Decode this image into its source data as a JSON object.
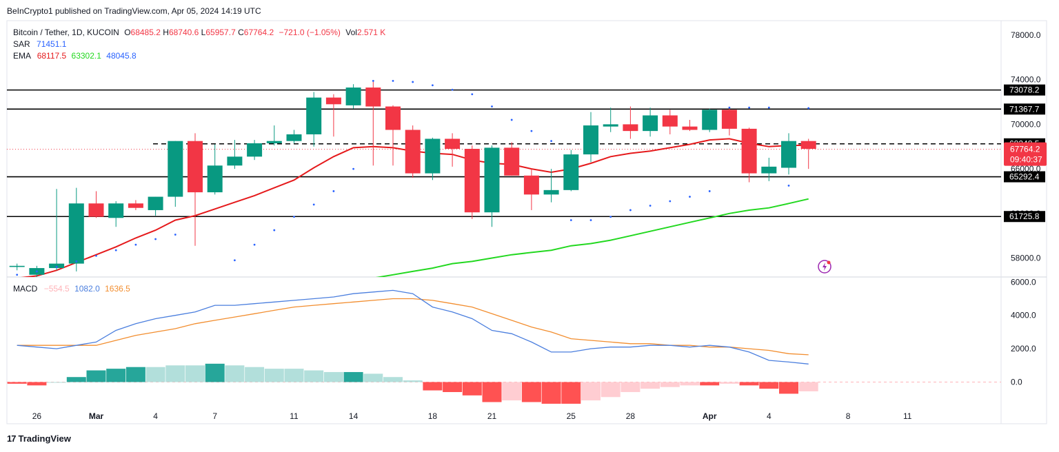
{
  "publisher": "BeInCrypto1 published on TradingView.com, Apr 05, 2024 14:19 UTC",
  "symbol": {
    "name": "Bitcoin / Tether, 1D, KUCOIN",
    "open_label": "O",
    "open": "68485.2",
    "high_label": "H",
    "high": "68740.6",
    "low_label": "L",
    "low": "65957.7",
    "close_label": "C",
    "close": "67764.2",
    "change": "−721.0 (−1.05%)",
    "vol_label": "Vol",
    "vol": "2.571 K"
  },
  "indicators": {
    "sar_label": "SAR",
    "sar_value": "71451.1",
    "ema_label": "EMA",
    "ema_values": [
      "68117.5",
      "63302.1",
      "48045.8"
    ],
    "macd_label": "MACD",
    "macd_values": [
      "−554.5",
      "1082.0",
      "1636.5"
    ]
  },
  "footer": {
    "brand": "TradingView",
    "logo": "17"
  },
  "colors": {
    "up": "#089981",
    "down": "#f23645",
    "ema_fast": "#e5191b",
    "ema_mid": "#22d81f",
    "macd_line": "#4a7ede",
    "signal_line": "#f28d2e",
    "hist_up_strong": "#26a69a",
    "hist_up_weak": "#b2dfdb",
    "hist_down_strong": "#ff5252",
    "hist_down_weak": "#ffcdd2",
    "sar": "#2962ff"
  },
  "chart_data": [
    {
      "type": "candlestick",
      "ylim": [
        56300,
        79300
      ],
      "y_ticks": [
        "78000.0",
        "74000.0",
        "70000.0",
        "66000.0",
        "62000.0",
        "58000.0"
      ],
      "x_ticks": [
        "26",
        "Mar",
        "4",
        "7",
        "11",
        "14",
        "18",
        "21",
        "25",
        "28",
        "Apr",
        "4",
        "8",
        "11"
      ],
      "x_tick_index": [
        2,
        5,
        8,
        11,
        15,
        18,
        22,
        25,
        29,
        32,
        36,
        39,
        43,
        46
      ],
      "candles": [
        {
          "o": 57200,
          "h": 57400,
          "l": 56800,
          "c": 57100
        },
        {
          "o": 57200,
          "h": 57500,
          "l": 56900,
          "c": 57300
        },
        {
          "o": 56500,
          "h": 57300,
          "l": 56200,
          "c": 57100
        },
        {
          "o": 57100,
          "h": 64200,
          "l": 56900,
          "c": 57500
        },
        {
          "o": 57500,
          "h": 64300,
          "l": 56800,
          "c": 62900
        },
        {
          "o": 62900,
          "h": 64000,
          "l": 61600,
          "c": 61700
        },
        {
          "o": 61600,
          "h": 63100,
          "l": 60800,
          "c": 62900
        },
        {
          "o": 62900,
          "h": 63200,
          "l": 62300,
          "c": 62500
        },
        {
          "o": 62300,
          "h": 63500,
          "l": 61800,
          "c": 63500
        },
        {
          "o": 63500,
          "h": 68500,
          "l": 62600,
          "c": 68500
        },
        {
          "o": 68500,
          "h": 69200,
          "l": 59100,
          "c": 63900
        },
        {
          "o": 63900,
          "h": 68200,
          "l": 63700,
          "c": 66300
        },
        {
          "o": 66300,
          "h": 68600,
          "l": 66000,
          "c": 67100
        },
        {
          "o": 67100,
          "h": 68600,
          "l": 66800,
          "c": 68300
        },
        {
          "o": 68300,
          "h": 69900,
          "l": 68100,
          "c": 68500
        },
        {
          "o": 68500,
          "h": 69500,
          "l": 68300,
          "c": 69100
        },
        {
          "o": 69100,
          "h": 72900,
          "l": 68000,
          "c": 72400
        },
        {
          "o": 72400,
          "h": 72700,
          "l": 68900,
          "c": 71800
        },
        {
          "o": 71700,
          "h": 73600,
          "l": 71400,
          "c": 73300
        },
        {
          "o": 73300,
          "h": 73900,
          "l": 66300,
          "c": 71600
        },
        {
          "o": 71600,
          "h": 71700,
          "l": 66300,
          "c": 69500
        },
        {
          "o": 69500,
          "h": 69900,
          "l": 65200,
          "c": 65600
        },
        {
          "o": 65600,
          "h": 68800,
          "l": 65000,
          "c": 68700
        },
        {
          "o": 68700,
          "h": 69200,
          "l": 66200,
          "c": 67800
        },
        {
          "o": 67800,
          "h": 68100,
          "l": 61500,
          "c": 62100
        },
        {
          "o": 62100,
          "h": 68100,
          "l": 60800,
          "c": 67900
        },
        {
          "o": 67900,
          "h": 68400,
          "l": 65400,
          "c": 65400
        },
        {
          "o": 65400,
          "h": 66000,
          "l": 62300,
          "c": 63700
        },
        {
          "o": 63700,
          "h": 66000,
          "l": 63000,
          "c": 64100
        },
        {
          "o": 64100,
          "h": 67700,
          "l": 64000,
          "c": 67300
        },
        {
          "o": 67300,
          "h": 71100,
          "l": 66600,
          "c": 69900
        },
        {
          "o": 69800,
          "h": 71500,
          "l": 69300,
          "c": 70000
        },
        {
          "o": 70000,
          "h": 71600,
          "l": 68700,
          "c": 69400
        },
        {
          "o": 69400,
          "h": 71500,
          "l": 68900,
          "c": 70800
        },
        {
          "o": 70800,
          "h": 71300,
          "l": 69100,
          "c": 69800
        },
        {
          "o": 69800,
          "h": 70400,
          "l": 69400,
          "c": 69500
        },
        {
          "o": 69500,
          "h": 71400,
          "l": 69300,
          "c": 71300
        },
        {
          "o": 71300,
          "h": 71400,
          "l": 69000,
          "c": 69600
        },
        {
          "o": 69600,
          "h": 69700,
          "l": 64800,
          "c": 65600
        },
        {
          "o": 65600,
          "h": 67000,
          "l": 64900,
          "c": 66200
        },
        {
          "o": 66100,
          "h": 69200,
          "l": 65500,
          "c": 68500
        },
        {
          "o": 68500,
          "h": 68700,
          "l": 66000,
          "c": 67800
        }
      ],
      "sar": [
        56000,
        56500,
        56800,
        57200,
        57700,
        58200,
        58700,
        59200,
        59700,
        60100,
        54600,
        55300,
        57800,
        59200,
        60500,
        61700,
        62800,
        64000,
        66000,
        73900,
        73900,
        73800,
        73500,
        73100,
        72700,
        71600,
        70400,
        69400,
        68500,
        61400,
        61400,
        61700,
        62300,
        62700,
        63100,
        63500,
        64000,
        71500,
        71500,
        71500,
        64500,
        71451
      ],
      "ema_fast": [
        55900,
        56200,
        56400,
        56900,
        57600,
        58300,
        59000,
        59800,
        60500,
        61400,
        61800,
        62400,
        63000,
        63600,
        64300,
        65000,
        66100,
        67100,
        67900,
        68000,
        67900,
        67600,
        67400,
        67300,
        66800,
        66500,
        66400,
        66000,
        65700,
        66000,
        66500,
        67100,
        67400,
        67600,
        67900,
        68200,
        68600,
        68700,
        68300,
        68000,
        68100,
        68117.5
      ],
      "ema_mid": [
        null,
        null,
        null,
        null,
        null,
        null,
        null,
        null,
        null,
        null,
        null,
        null,
        null,
        null,
        null,
        null,
        null,
        null,
        null,
        56200,
        56500,
        56800,
        57100,
        57500,
        57700,
        58000,
        58300,
        58500,
        58700,
        59100,
        59300,
        59600,
        60000,
        60400,
        60800,
        61200,
        61600,
        62000,
        62300,
        62500,
        62900,
        63302.1
      ],
      "levels": [
        {
          "value": 73078.2,
          "label": "73078.2",
          "style": "solid"
        },
        {
          "value": 71367.7,
          "label": "71367.7",
          "style": "solid"
        },
        {
          "value": 68248.5,
          "label": "68248.5",
          "style": "dashed"
        },
        {
          "value": 65292.4,
          "label": "65292.4",
          "style": "solid"
        },
        {
          "value": 61725.8,
          "label": "61725.8",
          "style": "solid"
        }
      ],
      "last_price": {
        "value": 67764.2,
        "label": "67764.2",
        "countdown": "09:40:37"
      }
    },
    {
      "type": "macd",
      "ylim": [
        -2500,
        6300
      ],
      "y_ticks": [
        "6000.0",
        "4000.0",
        "2000.0",
        "0.0"
      ],
      "macd": [
        2200,
        2100,
        2000,
        2200,
        2400,
        3100,
        3500,
        3800,
        4000,
        4200,
        4600,
        4600,
        4700,
        4800,
        4900,
        5000,
        5100,
        5300,
        5400,
        5500,
        5300,
        4500,
        4200,
        3800,
        3100,
        2900,
        2400,
        1800,
        1800,
        2000,
        2100,
        2100,
        2200,
        2200,
        2100,
        2200,
        2100,
        1800,
        1300,
        1200,
        1082
      ],
      "signal": [
        2200,
        2200,
        2200,
        2200,
        2200,
        2500,
        2800,
        3000,
        3200,
        3500,
        3700,
        3900,
        4100,
        4300,
        4500,
        4600,
        4700,
        4800,
        4900,
        5000,
        5000,
        4900,
        4700,
        4500,
        4100,
        3700,
        3300,
        3000,
        2600,
        2500,
        2400,
        2300,
        2300,
        2200,
        2200,
        2100,
        2100,
        2000,
        1900,
        1700,
        1636.5
      ],
      "hist": [
        -100,
        -200,
        0,
        300,
        700,
        800,
        900,
        900,
        1000,
        1000,
        1100,
        1000,
        900,
        800,
        800,
        700,
        600,
        600,
        500,
        300,
        100,
        -500,
        -600,
        -800,
        -1200,
        -1100,
        -1200,
        -1300,
        -1300,
        -1100,
        -900,
        -600,
        -400,
        -300,
        -200,
        -200,
        -100,
        -200,
        -400,
        -700,
        -554.5
      ],
      "hist_colors": [
        "down_strong",
        "down_strong",
        "up_weak",
        "up_strong",
        "up_strong",
        "up_strong",
        "up_strong",
        "up_weak",
        "up_weak",
        "up_weak",
        "up_strong",
        "up_weak",
        "up_weak",
        "up_weak",
        "up_weak",
        "up_weak",
        "up_weak",
        "up_strong",
        "up_weak",
        "up_weak",
        "up_weak",
        "down_strong",
        "down_strong",
        "down_strong",
        "down_strong",
        "down_weak",
        "down_strong",
        "down_strong",
        "down_strong",
        "down_weak",
        "down_weak",
        "down_weak",
        "down_weak",
        "down_weak",
        "down_weak",
        "down_strong",
        "down_weak",
        "down_strong",
        "down_strong",
        "down_strong",
        "down_weak"
      ]
    }
  ]
}
